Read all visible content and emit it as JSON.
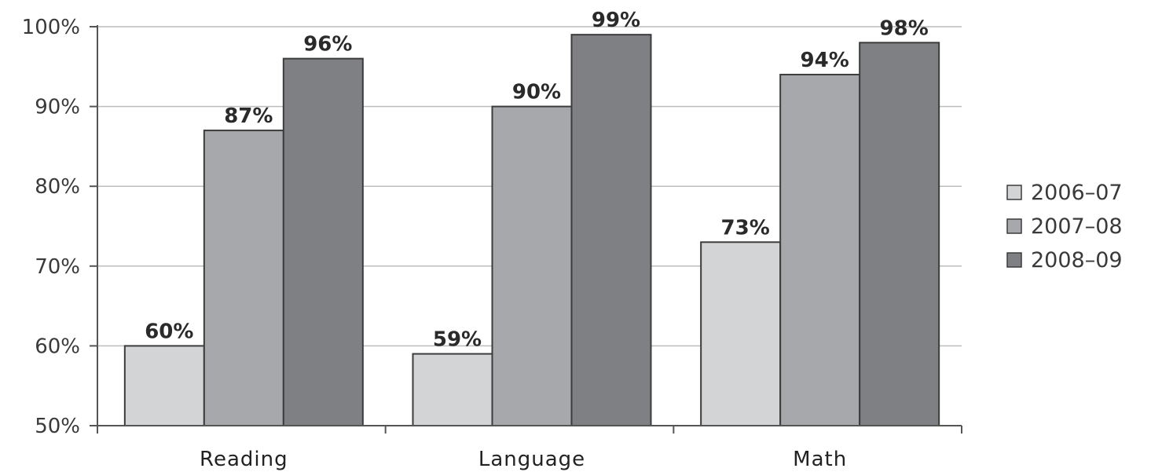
{
  "chart_data": {
    "type": "bar",
    "title": "",
    "xlabel": "",
    "ylabel": "",
    "categories": [
      "Reading",
      "Language",
      "Math"
    ],
    "ylim": [
      50,
      100
    ],
    "yticks": [
      50,
      60,
      70,
      80,
      90,
      100
    ],
    "ytick_labels": [
      "50%",
      "60%",
      "70%",
      "80%",
      "90%",
      "100%"
    ],
    "grid": true,
    "legend": "right",
    "series": [
      {
        "name": "2006–07",
        "color": "#d3d4d6",
        "values": [
          60,
          59,
          73
        ],
        "labels": [
          "60%",
          "59%",
          "73%"
        ]
      },
      {
        "name": "2007–08",
        "color": "#a7a8ab",
        "values": [
          87,
          90,
          94
        ],
        "labels": [
          "87%",
          "90%",
          "94%"
        ]
      },
      {
        "name": "2008–09",
        "color": "#7f8084",
        "values": [
          96,
          99,
          98
        ],
        "labels": [
          "96%",
          "99%",
          "98%"
        ]
      }
    ]
  }
}
